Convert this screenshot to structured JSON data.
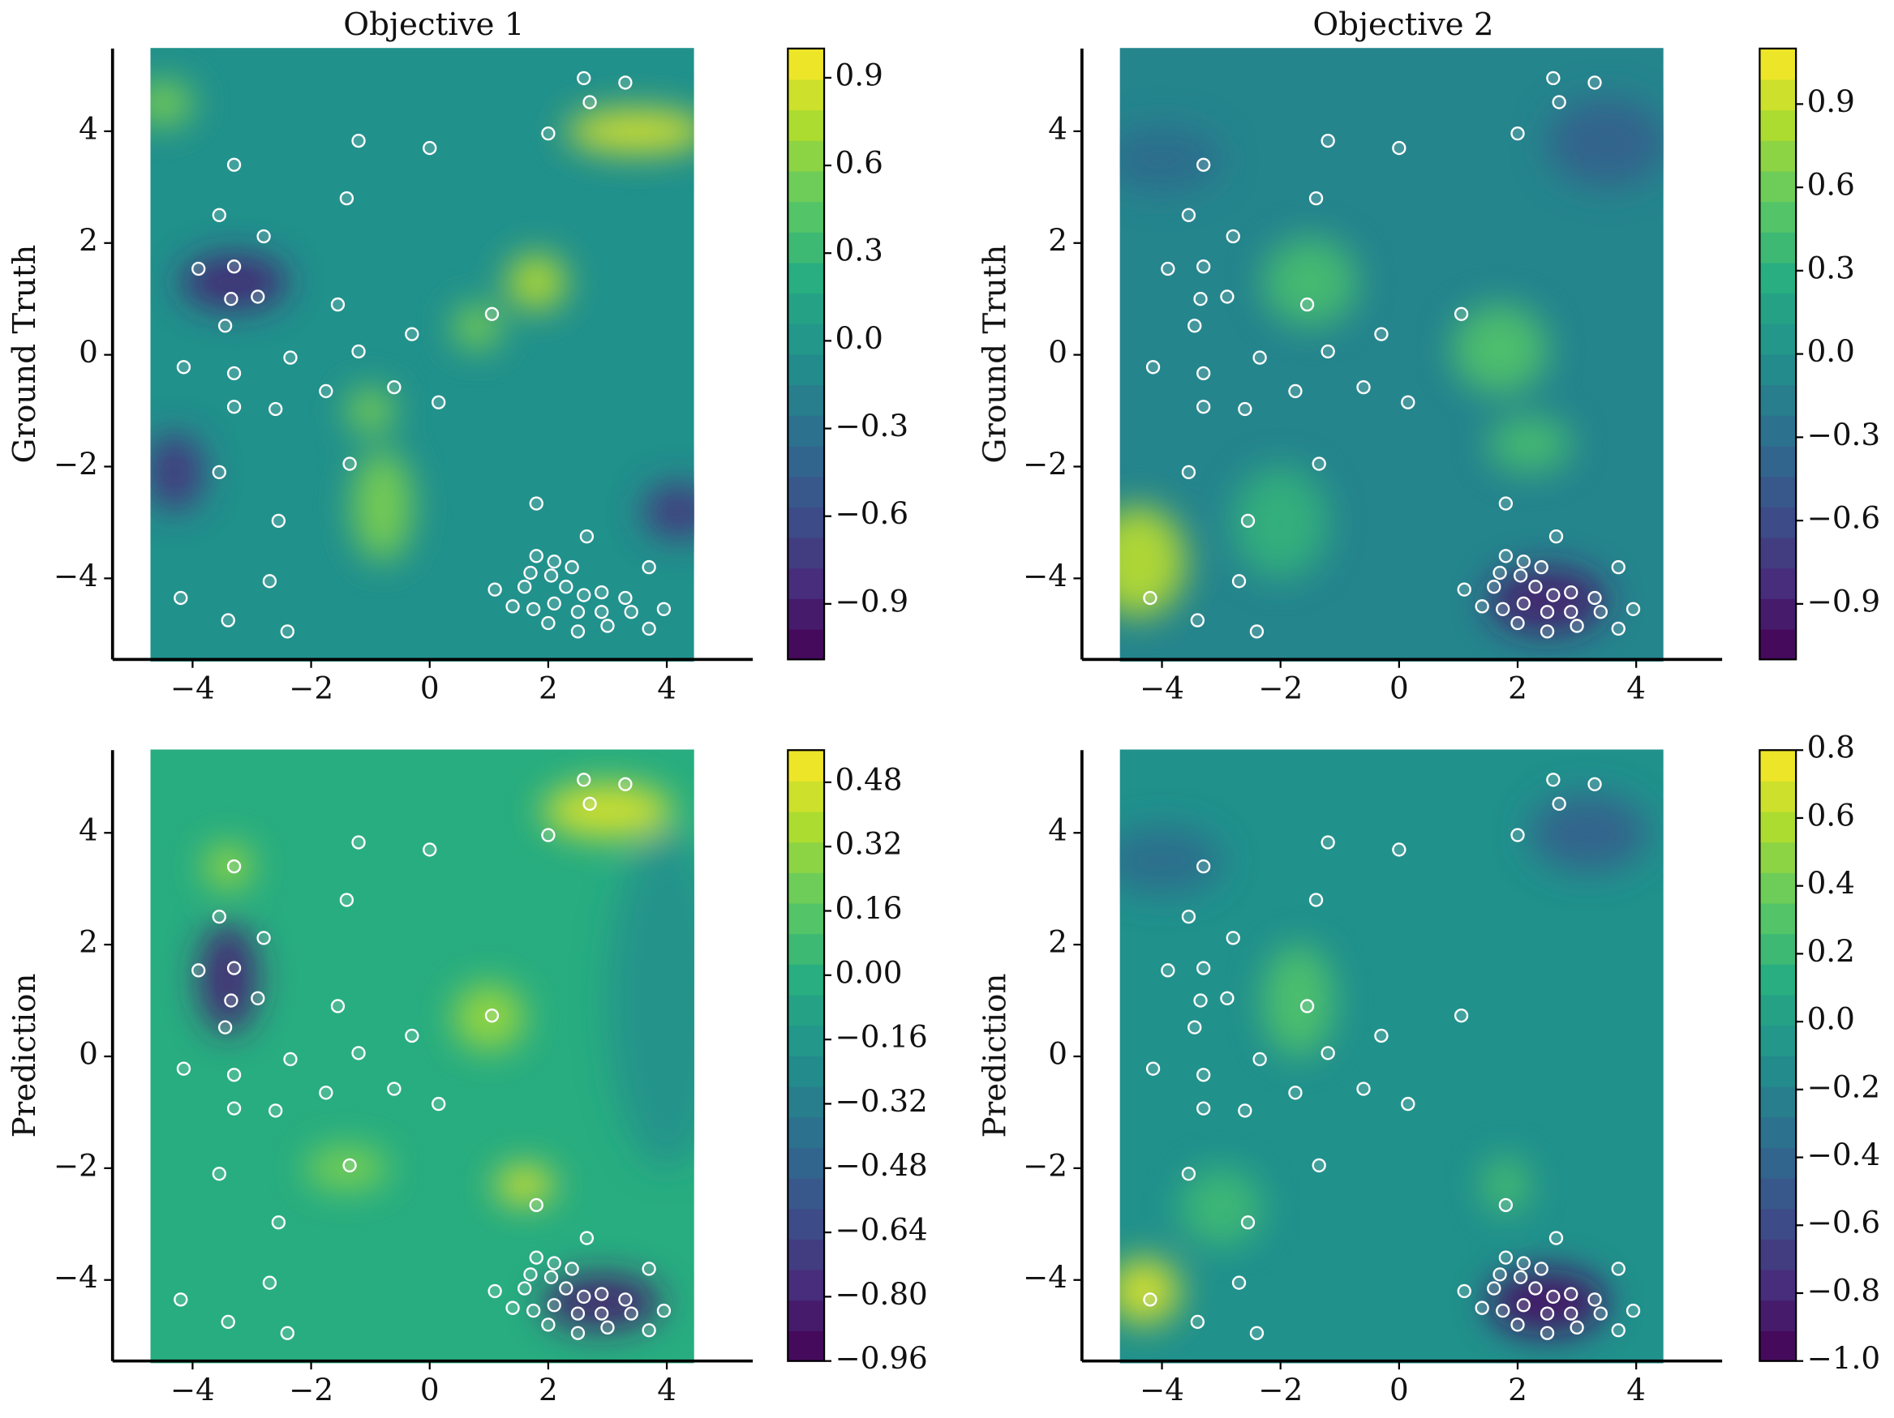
{
  "chart_data": [
    {
      "type": "contour",
      "title": "Objective 1",
      "ylabel": "Ground Truth",
      "colormap": "viridis",
      "xlim": [
        -5.35,
        5.45
      ],
      "ylim": [
        -5.45,
        5.48
      ],
      "xticks": [
        {
          "value": -4,
          "label": "−4"
        },
        {
          "value": -2,
          "label": "−2"
        },
        0,
        2,
        4
      ],
      "yticks": [
        {
          "value": -4,
          "label": "−4"
        },
        {
          "value": -2,
          "label": "−2"
        },
        0,
        2,
        4
      ],
      "clim": [
        -1.09,
        1.0
      ],
      "cticks": [
        {
          "value": -0.9,
          "label": "−0.9"
        },
        {
          "value": -0.6,
          "label": "−0.6"
        },
        {
          "value": -0.3,
          "label": "−0.3"
        },
        {
          "value": 0,
          "label": "0.0"
        },
        0.3,
        0.6,
        0.9
      ],
      "points": {
        "x": [
          2.6,
          3.3,
          2.7,
          2.0,
          0,
          -1.2,
          -3.3,
          -1.4,
          -3.55,
          -2.8,
          -3.9,
          -3.3,
          -3.35,
          -2.9,
          -1.55,
          1.05,
          -3.45,
          -0.3,
          -1.2,
          -2.35,
          -4.15,
          -3.3,
          -0.6,
          -1.75,
          0.15,
          -3.3,
          -2.6,
          -1.35,
          -3.55,
          1.8,
          -2.55,
          2.65,
          -2.7,
          3.7,
          -4.2,
          1.1,
          -3.4,
          -2.4,
          3.7,
          1.8,
          2.1,
          1.7,
          2.05,
          2.4,
          1.6,
          2.3,
          2.6,
          2.9,
          3.3,
          1.4,
          1.75,
          2.1,
          2.5,
          2.9,
          3.4,
          3.95,
          2.0,
          2.5,
          3.0
        ],
        "y": [
          4.95,
          4.87,
          4.52,
          3.96,
          3.7,
          3.83,
          3.4,
          2.8,
          2.5,
          2.12,
          1.54,
          1.58,
          1.0,
          1.04,
          0.9,
          0.73,
          0.52,
          0.37,
          0.06,
          -0.05,
          -0.22,
          -0.33,
          -0.58,
          -0.65,
          -0.85,
          -0.93,
          -0.97,
          -1.95,
          -2.1,
          -2.66,
          -2.97,
          -3.25,
          -4.05,
          -3.8,
          -4.35,
          -4.2,
          -4.75,
          -4.95,
          -4.9,
          -3.6,
          -3.7,
          -3.9,
          -3.95,
          -3.8,
          -4.15,
          -4.15,
          -4.3,
          -4.25,
          -4.35,
          -4.5,
          -4.55,
          -4.45,
          -4.6,
          -4.6,
          -4.6,
          -4.55,
          -4.8,
          -4.95,
          -4.85
        ]
      }
    },
    {
      "type": "contour",
      "title": "Objective 2",
      "ylabel": "Ground Truth",
      "colormap": "viridis",
      "xlim": [
        -5.35,
        5.45
      ],
      "ylim": [
        -5.45,
        5.48
      ],
      "xticks": [
        {
          "value": -4,
          "label": "−4"
        },
        {
          "value": -2,
          "label": "−2"
        },
        0,
        2,
        4
      ],
      "yticks": [
        {
          "value": -4,
          "label": "−4"
        },
        {
          "value": -2,
          "label": "−2"
        },
        0,
        2,
        4
      ],
      "clim": [
        -1.1,
        1.1
      ],
      "cticks": [
        {
          "value": -0.9,
          "label": "−0.9"
        },
        {
          "value": -0.6,
          "label": "−0.6"
        },
        {
          "value": -0.3,
          "label": "−0.3"
        },
        {
          "value": 0,
          "label": "0.0"
        },
        0.3,
        0.6,
        0.9
      ],
      "points": {
        "x": [
          2.6,
          3.3,
          2.7,
          2.0,
          0,
          -1.2,
          -3.3,
          -1.4,
          -3.55,
          -2.8,
          -3.9,
          -3.3,
          -3.35,
          -2.9,
          -1.55,
          1.05,
          -3.45,
          -0.3,
          -1.2,
          -2.35,
          -4.15,
          -3.3,
          -0.6,
          -1.75,
          0.15,
          -3.3,
          -2.6,
          -1.35,
          -3.55,
          1.8,
          -2.55,
          2.65,
          -2.7,
          3.7,
          -4.2,
          1.1,
          -3.4,
          -2.4,
          3.7,
          1.8,
          2.1,
          1.7,
          2.05,
          2.4,
          1.6,
          2.3,
          2.6,
          2.9,
          3.3,
          1.4,
          1.75,
          2.1,
          2.5,
          2.9,
          3.4,
          3.95,
          2.0,
          2.5,
          3.0
        ],
        "y": [
          4.95,
          4.87,
          4.52,
          3.96,
          3.7,
          3.83,
          3.4,
          2.8,
          2.5,
          2.12,
          1.54,
          1.58,
          1.0,
          1.04,
          0.9,
          0.73,
          0.52,
          0.37,
          0.06,
          -0.05,
          -0.22,
          -0.33,
          -0.58,
          -0.65,
          -0.85,
          -0.93,
          -0.97,
          -1.95,
          -2.1,
          -2.66,
          -2.97,
          -3.25,
          -4.05,
          -3.8,
          -4.35,
          -4.2,
          -4.75,
          -4.95,
          -4.9,
          -3.6,
          -3.7,
          -3.9,
          -3.95,
          -3.8,
          -4.15,
          -4.15,
          -4.3,
          -4.25,
          -4.35,
          -4.5,
          -4.55,
          -4.45,
          -4.6,
          -4.6,
          -4.6,
          -4.55,
          -4.8,
          -4.95,
          -4.85
        ]
      }
    },
    {
      "type": "contour",
      "ylabel": "Prediction",
      "colormap": "viridis",
      "xlim": [
        -5.35,
        5.45
      ],
      "ylim": [
        -5.45,
        5.48
      ],
      "xticks": [
        {
          "value": -4,
          "label": "−4"
        },
        {
          "value": -2,
          "label": "−2"
        },
        0,
        2,
        4
      ],
      "yticks": [
        {
          "value": -4,
          "label": "−4"
        },
        {
          "value": -2,
          "label": "−2"
        },
        0,
        2,
        4
      ],
      "clim": [
        -0.96,
        0.56
      ],
      "cticks": [
        {
          "value": -0.96,
          "label": "−0.96"
        },
        {
          "value": -0.8,
          "label": "−0.80"
        },
        {
          "value": -0.64,
          "label": "−0.64"
        },
        {
          "value": -0.48,
          "label": "−0.48"
        },
        {
          "value": -0.32,
          "label": "−0.32"
        },
        {
          "value": -0.16,
          "label": "−0.16"
        },
        {
          "value": 0,
          "label": "0.00"
        },
        0.16,
        0.32,
        0.48
      ],
      "points": {
        "x": [
          2.6,
          3.3,
          2.7,
          2.0,
          0,
          -1.2,
          -3.3,
          -1.4,
          -3.55,
          -2.8,
          -3.9,
          -3.3,
          -3.35,
          -2.9,
          -1.55,
          1.05,
          -3.45,
          -0.3,
          -1.2,
          -2.35,
          -4.15,
          -3.3,
          -0.6,
          -1.75,
          0.15,
          -3.3,
          -2.6,
          -1.35,
          -3.55,
          1.8,
          -2.55,
          2.65,
          -2.7,
          3.7,
          -4.2,
          1.1,
          -3.4,
          -2.4,
          3.7,
          1.8,
          2.1,
          1.7,
          2.05,
          2.4,
          1.6,
          2.3,
          2.6,
          2.9,
          3.3,
          1.4,
          1.75,
          2.1,
          2.5,
          2.9,
          3.4,
          3.95,
          2.0,
          2.5,
          3.0
        ],
        "y": [
          4.95,
          4.87,
          4.52,
          3.96,
          3.7,
          3.83,
          3.4,
          2.8,
          2.5,
          2.12,
          1.54,
          1.58,
          1.0,
          1.04,
          0.9,
          0.73,
          0.52,
          0.37,
          0.06,
          -0.05,
          -0.22,
          -0.33,
          -0.58,
          -0.65,
          -0.85,
          -0.93,
          -0.97,
          -1.95,
          -2.1,
          -2.66,
          -2.97,
          -3.25,
          -4.05,
          -3.8,
          -4.35,
          -4.2,
          -4.75,
          -4.95,
          -4.9,
          -3.6,
          -3.7,
          -3.9,
          -3.95,
          -3.8,
          -4.15,
          -4.15,
          -4.3,
          -4.25,
          -4.35,
          -4.5,
          -4.55,
          -4.45,
          -4.6,
          -4.6,
          -4.6,
          -4.55,
          -4.8,
          -4.95,
          -4.85
        ]
      }
    },
    {
      "type": "contour",
      "ylabel": "Prediction",
      "colormap": "viridis",
      "xlim": [
        -5.35,
        5.45
      ],
      "ylim": [
        -5.45,
        5.48
      ],
      "xticks": [
        {
          "value": -4,
          "label": "−4"
        },
        {
          "value": -2,
          "label": "−2"
        },
        0,
        2,
        4
      ],
      "yticks": [
        {
          "value": -4,
          "label": "−4"
        },
        {
          "value": -2,
          "label": "−2"
        },
        0,
        2,
        4
      ],
      "clim": [
        -1.0,
        0.8
      ],
      "cticks": [
        {
          "value": -1.0,
          "label": "−1.0"
        },
        {
          "value": -0.8,
          "label": "−0.8"
        },
        {
          "value": -0.6,
          "label": "−0.6"
        },
        {
          "value": -0.4,
          "label": "−0.4"
        },
        {
          "value": -0.2,
          "label": "−0.2"
        },
        {
          "value": 0,
          "label": "0.0"
        },
        0.2,
        0.4,
        0.6,
        0.8
      ],
      "points": {
        "x": [
          2.6,
          3.3,
          2.7,
          2.0,
          0,
          -1.2,
          -3.3,
          -1.4,
          -3.55,
          -2.8,
          -3.9,
          -3.3,
          -3.35,
          -2.9,
          -1.55,
          1.05,
          -3.45,
          -0.3,
          -1.2,
          -2.35,
          -4.15,
          -3.3,
          -0.6,
          -1.75,
          0.15,
          -3.3,
          -2.6,
          -1.35,
          -3.55,
          1.8,
          -2.55,
          2.65,
          -2.7,
          3.7,
          -4.2,
          1.1,
          -3.4,
          -2.4,
          3.7,
          1.8,
          2.1,
          1.7,
          2.05,
          2.4,
          1.6,
          2.3,
          2.6,
          2.9,
          3.3,
          1.4,
          1.75,
          2.1,
          2.5,
          2.9,
          3.4,
          3.95,
          2.0,
          2.5,
          3.0
        ],
        "y": [
          4.95,
          4.87,
          4.52,
          3.96,
          3.7,
          3.83,
          3.4,
          2.8,
          2.5,
          2.12,
          1.54,
          1.58,
          1.0,
          1.04,
          0.9,
          0.73,
          0.52,
          0.37,
          0.06,
          -0.05,
          -0.22,
          -0.33,
          -0.58,
          -0.65,
          -0.85,
          -0.93,
          -0.97,
          -1.95,
          -2.1,
          -2.66,
          -2.97,
          -3.25,
          -4.05,
          -3.8,
          -4.35,
          -4.2,
          -4.75,
          -4.95,
          -4.9,
          -3.6,
          -3.7,
          -3.9,
          -3.95,
          -3.8,
          -4.15,
          -4.15,
          -4.3,
          -4.25,
          -4.35,
          -4.5,
          -4.55,
          -4.45,
          -4.6,
          -4.6,
          -4.6,
          -4.55,
          -4.8,
          -4.95,
          -4.85
        ]
      }
    }
  ]
}
